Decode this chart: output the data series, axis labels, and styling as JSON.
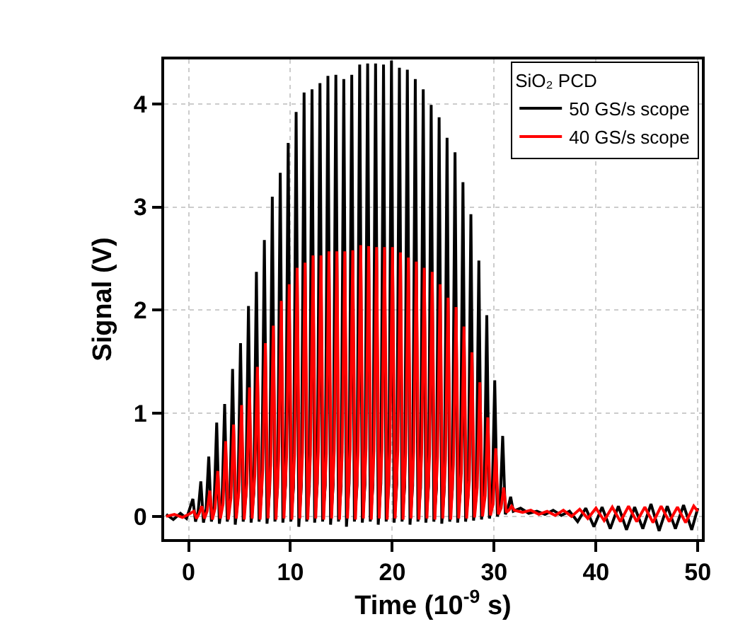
{
  "chart_data": {
    "type": "line",
    "xlabel": "Time (10$^{-9}$ s)",
    "ylabel": "Signal (V)",
    "legend_title": "SiO₂ PCD",
    "xlim": [
      -2.4,
      50.4
    ],
    "xticks": [
      0,
      10,
      20,
      30,
      40,
      50
    ],
    "ylim": [
      -0.22,
      4.43
    ],
    "yticks": [
      0,
      1,
      2,
      3,
      4
    ],
    "grid": true,
    "legend": "top right",
    "marker": "none",
    "line_style": "solid",
    "series": [
      {
        "name": "50 GS/s scope",
        "color": "#000000",
        "x": [
          -2.2,
          -1.5,
          -0.8,
          -0.2,
          0.42,
          0.68,
          0.94,
          1.2,
          1.46,
          1.72,
          1.98,
          2.24,
          2.5,
          2.76,
          3.02,
          3.28,
          3.54,
          3.8,
          4.06,
          4.32,
          4.58,
          4.84,
          5.1,
          5.36,
          5.62,
          5.88,
          6.14,
          6.4,
          6.66,
          6.92,
          7.18,
          7.44,
          7.7,
          7.96,
          8.22,
          8.48,
          8.74,
          9.0,
          9.26,
          9.52,
          9.78,
          10.04,
          10.3,
          10.56,
          10.82,
          11.08,
          11.34,
          11.6,
          11.86,
          12.12,
          12.38,
          12.64,
          12.9,
          13.16,
          13.42,
          13.68,
          13.94,
          14.2,
          14.46,
          14.72,
          14.98,
          15.24,
          15.5,
          15.76,
          16.02,
          16.28,
          16.54,
          16.8,
          17.06,
          17.32,
          17.58,
          17.84,
          18.1,
          18.36,
          18.62,
          18.88,
          19.14,
          19.4,
          19.66,
          19.92,
          20.18,
          20.44,
          20.7,
          20.96,
          21.22,
          21.48,
          21.74,
          22.0,
          22.26,
          22.52,
          22.78,
          23.04,
          23.3,
          23.56,
          23.82,
          24.08,
          24.34,
          24.6,
          24.86,
          25.12,
          25.38,
          25.64,
          25.9,
          26.16,
          26.42,
          26.68,
          26.94,
          27.2,
          27.46,
          27.72,
          27.98,
          28.24,
          28.5,
          28.76,
          29.02,
          29.28,
          29.54,
          29.8,
          30.06,
          30.32,
          30.58,
          30.84,
          31.1,
          31.36,
          31.62,
          31.88,
          32.6,
          33.4,
          34.2,
          35.0,
          35.8,
          36.6,
          37.4,
          38.2,
          39.0,
          39.8,
          40.6,
          41.4,
          42.2,
          43.0,
          43.8,
          44.6,
          45.4,
          46.2,
          47.0,
          47.8,
          48.6,
          49.4,
          50.0
        ],
        "values": [
          0.02,
          -0.03,
          0.03,
          -0.02,
          0.17,
          -0.05,
          0.05,
          0.34,
          -0.06,
          0.07,
          0.58,
          -0.05,
          0.1,
          0.91,
          -0.07,
          0.12,
          1.09,
          -0.05,
          0.15,
          1.43,
          -0.08,
          0.18,
          1.68,
          -0.05,
          0.2,
          2.04,
          -0.06,
          0.22,
          2.37,
          -0.05,
          0.25,
          2.68,
          -0.07,
          0.27,
          3.1,
          -0.05,
          0.28,
          3.33,
          -0.06,
          0.3,
          3.62,
          -0.05,
          0.28,
          3.92,
          -0.1,
          0.31,
          4.11,
          -0.05,
          0.29,
          4.14,
          -0.06,
          0.32,
          4.2,
          -0.05,
          0.3,
          4.27,
          -0.08,
          0.31,
          4.28,
          -0.05,
          0.29,
          4.24,
          -0.1,
          0.32,
          4.28,
          -0.05,
          0.3,
          4.38,
          -0.06,
          0.31,
          4.39,
          -0.05,
          0.3,
          4.39,
          -0.08,
          0.32,
          4.38,
          -0.05,
          0.3,
          4.42,
          -0.06,
          0.31,
          4.35,
          -0.05,
          0.29,
          4.33,
          -0.08,
          0.3,
          4.24,
          -0.05,
          0.28,
          4.14,
          -0.06,
          0.29,
          3.99,
          -0.05,
          0.27,
          3.87,
          -0.07,
          0.28,
          3.67,
          -0.05,
          0.26,
          3.53,
          -0.06,
          0.25,
          3.24,
          -0.05,
          0.22,
          2.93,
          -0.04,
          0.2,
          2.48,
          -0.03,
          0.16,
          1.95,
          -0.02,
          0.13,
          1.32,
          0.0,
          0.1,
          0.78,
          0.02,
          0.08,
          0.19,
          0.05,
          0.08,
          0.03,
          0.05,
          0.02,
          0.06,
          0.01,
          0.05,
          -0.05,
          0.08,
          -0.1,
          0.09,
          -0.12,
          0.1,
          -0.13,
          0.09,
          -0.12,
          0.12,
          -0.14,
          0.1,
          -0.12,
          0.11,
          -0.13,
          0.08
        ]
      },
      {
        "name": "40 GS/s scope",
        "color": "#ff0000",
        "x": [
          -2.2,
          -1.4,
          -0.6,
          0.0,
          0.52,
          0.78,
          1.04,
          1.3,
          1.56,
          1.82,
          2.08,
          2.34,
          2.6,
          2.86,
          3.12,
          3.38,
          3.64,
          3.9,
          4.16,
          4.42,
          4.68,
          4.94,
          5.2,
          5.46,
          5.72,
          5.98,
          6.24,
          6.5,
          6.76,
          7.02,
          7.28,
          7.54,
          7.8,
          8.06,
          8.32,
          8.58,
          8.84,
          9.1,
          9.36,
          9.62,
          9.88,
          10.14,
          10.4,
          10.66,
          10.92,
          11.18,
          11.44,
          11.7,
          11.96,
          12.22,
          12.48,
          12.74,
          13.0,
          13.26,
          13.52,
          13.78,
          14.04,
          14.3,
          14.56,
          14.82,
          15.08,
          15.34,
          15.6,
          15.86,
          16.12,
          16.38,
          16.64,
          16.9,
          17.16,
          17.42,
          17.68,
          17.94,
          18.2,
          18.46,
          18.72,
          18.98,
          19.24,
          19.5,
          19.76,
          20.02,
          20.28,
          20.54,
          20.8,
          21.06,
          21.32,
          21.58,
          21.84,
          22.1,
          22.36,
          22.62,
          22.88,
          23.14,
          23.4,
          23.66,
          23.92,
          24.18,
          24.44,
          24.7,
          24.96,
          25.22,
          25.48,
          25.74,
          26.0,
          26.26,
          26.52,
          26.78,
          27.04,
          27.3,
          27.56,
          27.82,
          28.08,
          28.34,
          28.6,
          28.86,
          29.12,
          29.38,
          29.64,
          29.9,
          30.16,
          30.42,
          30.68,
          30.94,
          31.2,
          31.46,
          31.72,
          31.98,
          32.8,
          33.6,
          34.4,
          35.2,
          36.0,
          36.8,
          37.6,
          38.4,
          39.2,
          40.0,
          40.8,
          41.6,
          42.4,
          43.2,
          44.0,
          44.8,
          45.6,
          46.4,
          47.2,
          48.0,
          48.8,
          49.6,
          50.0
        ],
        "values": [
          0.0,
          0.02,
          -0.01,
          0.02,
          0.05,
          -0.02,
          0.03,
          0.1,
          -0.02,
          0.05,
          0.25,
          -0.03,
          0.08,
          0.44,
          -0.02,
          0.12,
          0.73,
          -0.03,
          0.18,
          0.89,
          -0.02,
          0.25,
          1.08,
          -0.03,
          0.32,
          1.25,
          -0.02,
          0.4,
          1.45,
          -0.03,
          0.45,
          1.68,
          -0.02,
          0.5,
          1.85,
          -0.03,
          0.55,
          2.09,
          -0.02,
          0.58,
          2.25,
          -0.03,
          0.6,
          2.41,
          -0.02,
          0.62,
          2.46,
          -0.03,
          0.6,
          2.53,
          -0.02,
          0.63,
          2.53,
          -0.03,
          0.61,
          2.57,
          -0.02,
          0.64,
          2.57,
          -0.03,
          0.62,
          2.57,
          -0.02,
          0.65,
          2.58,
          -0.03,
          0.63,
          2.63,
          -0.02,
          0.66,
          2.62,
          -0.03,
          0.64,
          2.61,
          -0.02,
          0.65,
          2.61,
          -0.03,
          0.63,
          2.61,
          -0.02,
          0.64,
          2.56,
          -0.03,
          0.62,
          2.51,
          -0.02,
          0.63,
          2.47,
          -0.03,
          0.61,
          2.41,
          -0.02,
          0.6,
          2.37,
          -0.03,
          0.58,
          2.25,
          -0.02,
          0.55,
          2.12,
          -0.03,
          0.5,
          2.03,
          -0.02,
          0.42,
          1.84,
          -0.02,
          0.35,
          1.59,
          -0.01,
          0.28,
          1.3,
          0.0,
          0.2,
          0.96,
          0.01,
          0.12,
          0.66,
          0.02,
          0.08,
          0.28,
          0.04,
          0.06,
          0.1,
          0.06,
          0.04,
          0.06,
          0.02,
          0.05,
          0.01,
          0.06,
          0.0,
          0.07,
          -0.02,
          0.08,
          -0.04,
          0.09,
          -0.05,
          0.1,
          -0.05,
          0.09,
          -0.06,
          0.1,
          -0.05,
          0.09,
          -0.06,
          0.1,
          0.05
        ]
      }
    ]
  }
}
